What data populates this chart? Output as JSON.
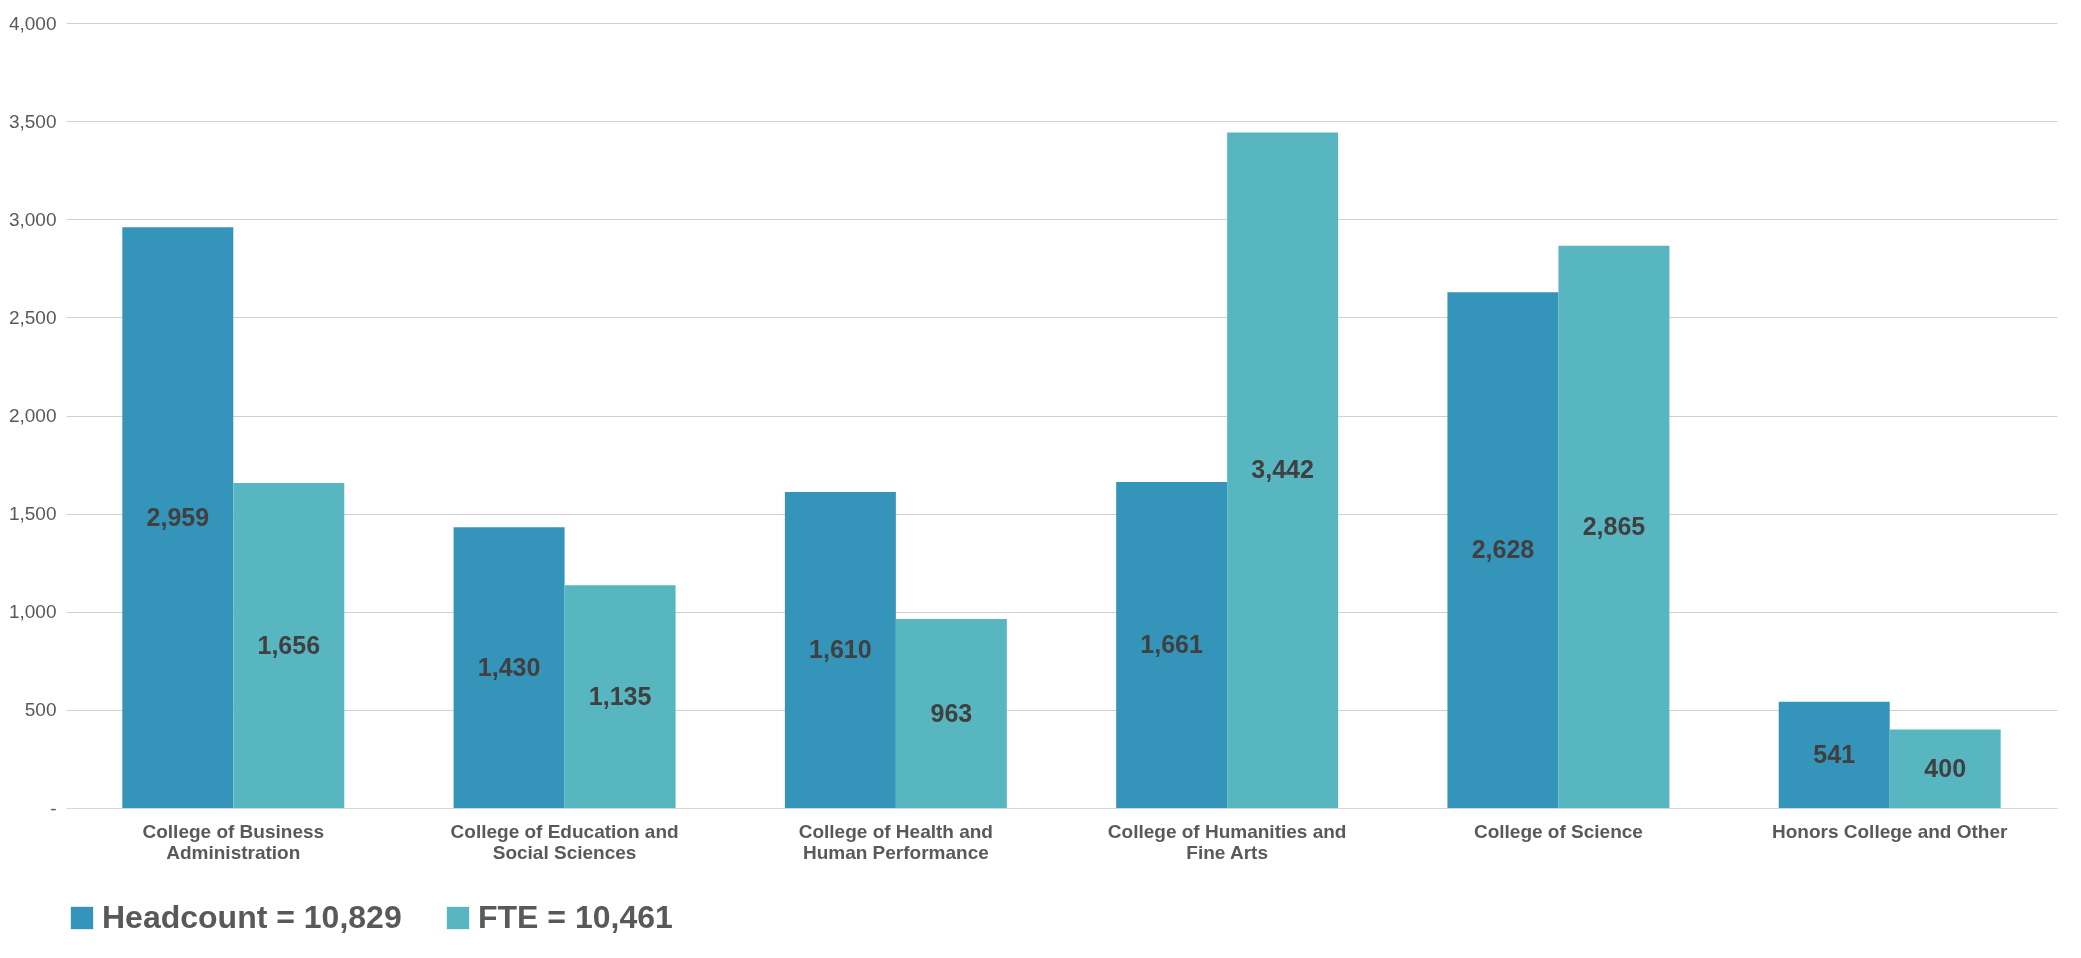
{
  "chart_data": {
    "type": "bar",
    "categories": [
      "College of Business Administration",
      "College of Education and Social Sciences",
      "College of Health and Human Performance",
      "College of Humanities and Fine Arts",
      "College of Science",
      "Honors College and Other"
    ],
    "series": [
      {
        "name": "Headcount = 10,829",
        "color": "#3494ba",
        "values": [
          2959,
          1430,
          1610,
          1661,
          2628,
          541
        ],
        "value_labels": [
          "2,959",
          "1,430",
          "1,610",
          "1,661",
          "2,628",
          "541"
        ]
      },
      {
        "name": "FTE = 10,461",
        "color": "#58b6c0",
        "values": [
          1656,
          1135,
          963,
          3442,
          2865,
          400
        ],
        "value_labels": [
          "1,656",
          "1,135",
          "963",
          "3,442",
          "2,865",
          "400"
        ]
      }
    ],
    "ylim": [
      0,
      4000
    ],
    "yticks": [
      {
        "value": 0,
        "label": "-"
      },
      500,
      {
        "value": 1000,
        "label": "1,000"
      },
      {
        "value": 1500,
        "label": "1,500"
      },
      {
        "value": 2000,
        "label": "2,000"
      },
      {
        "value": 2500,
        "label": "2,500"
      },
      {
        "value": 3000,
        "label": "3,000"
      },
      {
        "value": 3500,
        "label": "3,500"
      },
      {
        "value": 4000,
        "label": "4,000"
      }
    ],
    "grid": "y",
    "legend": "bottom"
  }
}
